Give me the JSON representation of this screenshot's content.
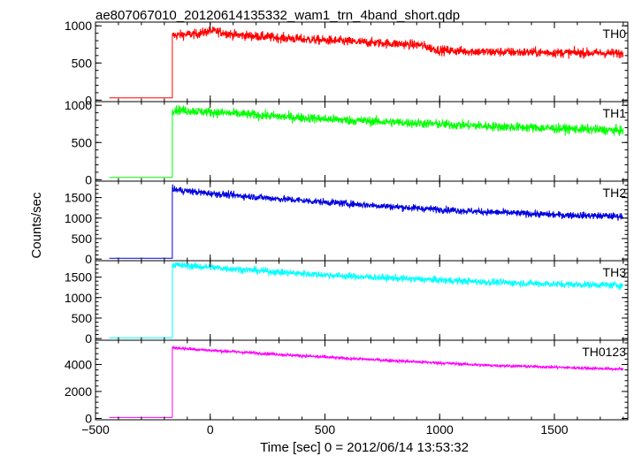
{
  "chart_data": {
    "type": "line",
    "title": "ae807067010_20120614135332_wam1_trn_4band_short.qdp",
    "xlabel": "Time [sec] 0 = 2012/06/14 13:53:32",
    "ylabel": "Counts/sec",
    "xlim": [
      -500,
      1820
    ],
    "x_ticks": [
      -500,
      0,
      500,
      1000,
      1500
    ],
    "grid": false,
    "trigger_time": -165,
    "data_start": -440,
    "data_end": 1800,
    "panels": [
      {
        "name": "TH0",
        "color": "#ff0000",
        "ylim": [
          -20,
          1050
        ],
        "y_ticks": [
          0,
          500,
          1000
        ],
        "pre_trigger_level": 30,
        "noise_amplitude": 45,
        "profile": [
          [
            -165,
            870
          ],
          [
            -120,
            880
          ],
          [
            -60,
            890
          ],
          [
            0,
            930
          ],
          [
            40,
            920
          ],
          [
            100,
            880
          ],
          [
            200,
            860
          ],
          [
            400,
            820
          ],
          [
            600,
            790
          ],
          [
            800,
            760
          ],
          [
            920,
            740
          ],
          [
            960,
            700
          ],
          [
            1000,
            670
          ],
          [
            1200,
            650
          ],
          [
            1500,
            640
          ],
          [
            1800,
            630
          ]
        ]
      },
      {
        "name": "TH1",
        "color": "#00ff00",
        "ylim": [
          -20,
          1050
        ],
        "y_ticks": [
          0,
          500,
          1000
        ],
        "pre_trigger_level": 30,
        "noise_amplitude": 45,
        "profile": [
          [
            -165,
            940
          ],
          [
            0,
            910
          ],
          [
            300,
            850
          ],
          [
            600,
            800
          ],
          [
            900,
            760
          ],
          [
            1200,
            720
          ],
          [
            1500,
            690
          ],
          [
            1800,
            660
          ]
        ]
      },
      {
        "name": "TH2",
        "color": "#0000e0",
        "ylim": [
          -40,
          1900
        ],
        "y_ticks": [
          0,
          500,
          1000,
          1500
        ],
        "pre_trigger_level": 20,
        "noise_amplitude": 60,
        "profile": [
          [
            -165,
            1700
          ],
          [
            -100,
            1660
          ],
          [
            0,
            1600
          ],
          [
            300,
            1470
          ],
          [
            600,
            1350
          ],
          [
            900,
            1240
          ],
          [
            1200,
            1150
          ],
          [
            1500,
            1080
          ],
          [
            1800,
            1040
          ]
        ]
      },
      {
        "name": "TH3",
        "color": "#00ffff",
        "ylim": [
          -40,
          1900
        ],
        "y_ticks": [
          0,
          500,
          1000,
          1500
        ],
        "pre_trigger_level": 20,
        "noise_amplitude": 60,
        "profile": [
          [
            -165,
            1800
          ],
          [
            0,
            1740
          ],
          [
            300,
            1620
          ],
          [
            600,
            1520
          ],
          [
            900,
            1450
          ],
          [
            1200,
            1380
          ],
          [
            1500,
            1330
          ],
          [
            1800,
            1300
          ]
        ]
      },
      {
        "name": "TH0123",
        "color": "#ff00ff",
        "ylim": [
          -100,
          5800
        ],
        "y_ticks": [
          0,
          2000,
          4000
        ],
        "pre_trigger_level": 70,
        "noise_amplitude": 80,
        "profile": [
          [
            -165,
            5250
          ],
          [
            0,
            5050
          ],
          [
            300,
            4750
          ],
          [
            600,
            4450
          ],
          [
            900,
            4200
          ],
          [
            1200,
            3950
          ],
          [
            1500,
            3800
          ],
          [
            1800,
            3650
          ]
        ]
      }
    ]
  }
}
